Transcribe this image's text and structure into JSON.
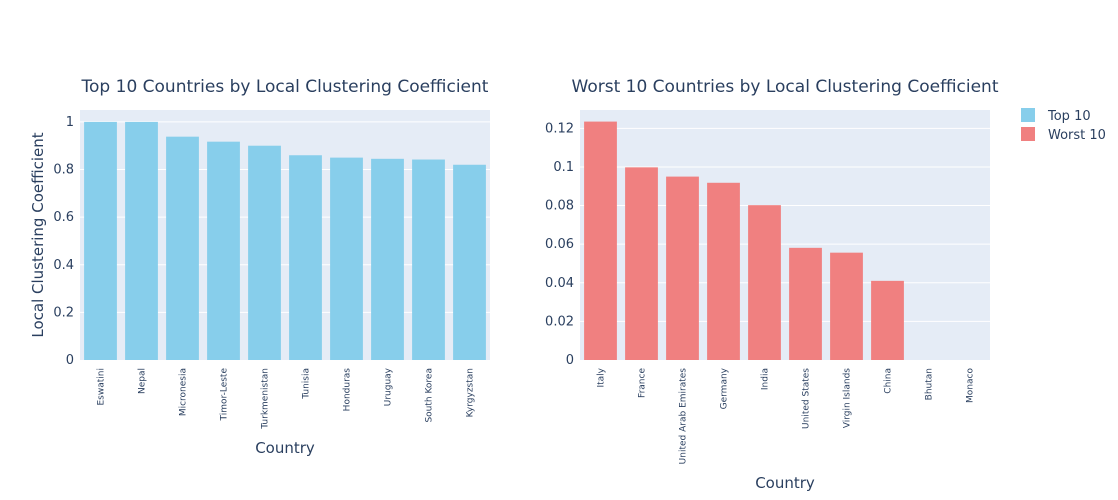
{
  "chart_data": [
    {
      "type": "bar",
      "title": "Top 10 Countries by Local Clustering Coefficient",
      "xlabel": "Country",
      "ylabel": "Local Clustering Coefficient",
      "ylim": [
        0,
        1.05
      ],
      "yticks": [
        0,
        0.2,
        0.4,
        0.6,
        0.8,
        1
      ],
      "ytick_labels": [
        "0",
        "0.2",
        "0.4",
        "0.6",
        "0.8",
        "1"
      ],
      "categories": [
        "Eswatini",
        "Nepal",
        "Micronesia",
        "Timor-Leste",
        "Turkmenistan",
        "Tunisia",
        "Honduras",
        "Uruguay",
        "South Korea",
        "Kyrgyzstan"
      ],
      "series": [
        {
          "name": "Top 10",
          "color": "#87ceeb",
          "values": [
            1.0,
            1.0,
            0.938,
            0.917,
            0.9,
            0.86,
            0.85,
            0.845,
            0.842,
            0.82
          ]
        }
      ],
      "grid": true
    },
    {
      "type": "bar",
      "title": "Worst 10 Countries by Local Clustering Coefficient",
      "xlabel": "Country",
      "ylabel": "",
      "ylim": [
        0,
        0.1295
      ],
      "yticks": [
        0,
        0.02,
        0.04,
        0.06,
        0.08,
        0.1,
        0.12
      ],
      "ytick_labels": [
        "0",
        "0.02",
        "0.04",
        "0.06",
        "0.08",
        "0.1",
        "0.12"
      ],
      "categories": [
        "Italy",
        "France",
        "United Arab Emirates",
        "Germany",
        "India",
        "United States",
        "Virgin Islands",
        "China",
        "Bhutan",
        "Monaco"
      ],
      "series": [
        {
          "name": "Worst 10",
          "color": "#f08080",
          "values": [
            0.1235,
            0.0998,
            0.095,
            0.0918,
            0.0802,
            0.0581,
            0.0556,
            0.041,
            0,
            0
          ]
        }
      ],
      "grid": true
    }
  ],
  "legend": {
    "placement": "top-right",
    "items": [
      {
        "label": "Top 10",
        "color": "#87ceeb"
      },
      {
        "label": "Worst 10",
        "color": "#f08080"
      }
    ]
  },
  "colors": {
    "plot_bg": "#e5ecf6",
    "grid": "#ffffff",
    "text": "#2a3f5f"
  }
}
